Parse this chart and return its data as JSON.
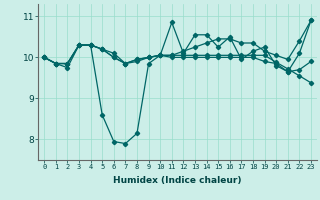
{
  "xlabel": "Humidex (Indice chaleur)",
  "ylabel": "",
  "bg_color": "#cceee8",
  "line_color": "#006666",
  "grid_color": "#99ddcc",
  "x_values": [
    0,
    1,
    2,
    3,
    4,
    5,
    6,
    7,
    8,
    9,
    10,
    11,
    12,
    13,
    14,
    15,
    16,
    17,
    18,
    19,
    20,
    21,
    22,
    23
  ],
  "series": [
    [
      10.0,
      9.85,
      9.75,
      10.3,
      10.3,
      8.6,
      7.95,
      7.9,
      8.15,
      9.85,
      10.05,
      10.85,
      10.1,
      10.55,
      10.55,
      10.25,
      10.5,
      9.95,
      10.15,
      10.25,
      9.8,
      9.65,
      10.1,
      10.9
    ],
    [
      10.0,
      9.85,
      9.85,
      10.3,
      10.3,
      10.2,
      10.1,
      9.85,
      9.95,
      10.0,
      10.05,
      10.05,
      10.05,
      10.05,
      10.05,
      10.05,
      10.05,
      10.05,
      10.05,
      10.05,
      9.88,
      9.72,
      9.55,
      9.38
    ],
    [
      10.0,
      9.85,
      9.85,
      10.3,
      10.3,
      10.2,
      10.0,
      9.85,
      9.95,
      10.0,
      10.05,
      10.05,
      10.15,
      10.25,
      10.35,
      10.45,
      10.45,
      10.35,
      10.35,
      10.15,
      10.05,
      9.95,
      10.4,
      10.9
    ],
    [
      10.0,
      9.85,
      9.85,
      10.3,
      10.3,
      10.2,
      10.0,
      9.85,
      9.9,
      10.0,
      10.05,
      10.0,
      10.0,
      10.0,
      10.0,
      10.0,
      10.0,
      10.0,
      10.0,
      9.9,
      9.85,
      9.65,
      9.7,
      9.9
    ]
  ],
  "ylim": [
    7.5,
    11.3
  ],
  "yticks": [
    8,
    9,
    10,
    11
  ],
  "xticks": [
    0,
    1,
    2,
    3,
    4,
    5,
    6,
    7,
    8,
    9,
    10,
    11,
    12,
    13,
    14,
    15,
    16,
    17,
    18,
    19,
    20,
    21,
    22,
    23
  ]
}
